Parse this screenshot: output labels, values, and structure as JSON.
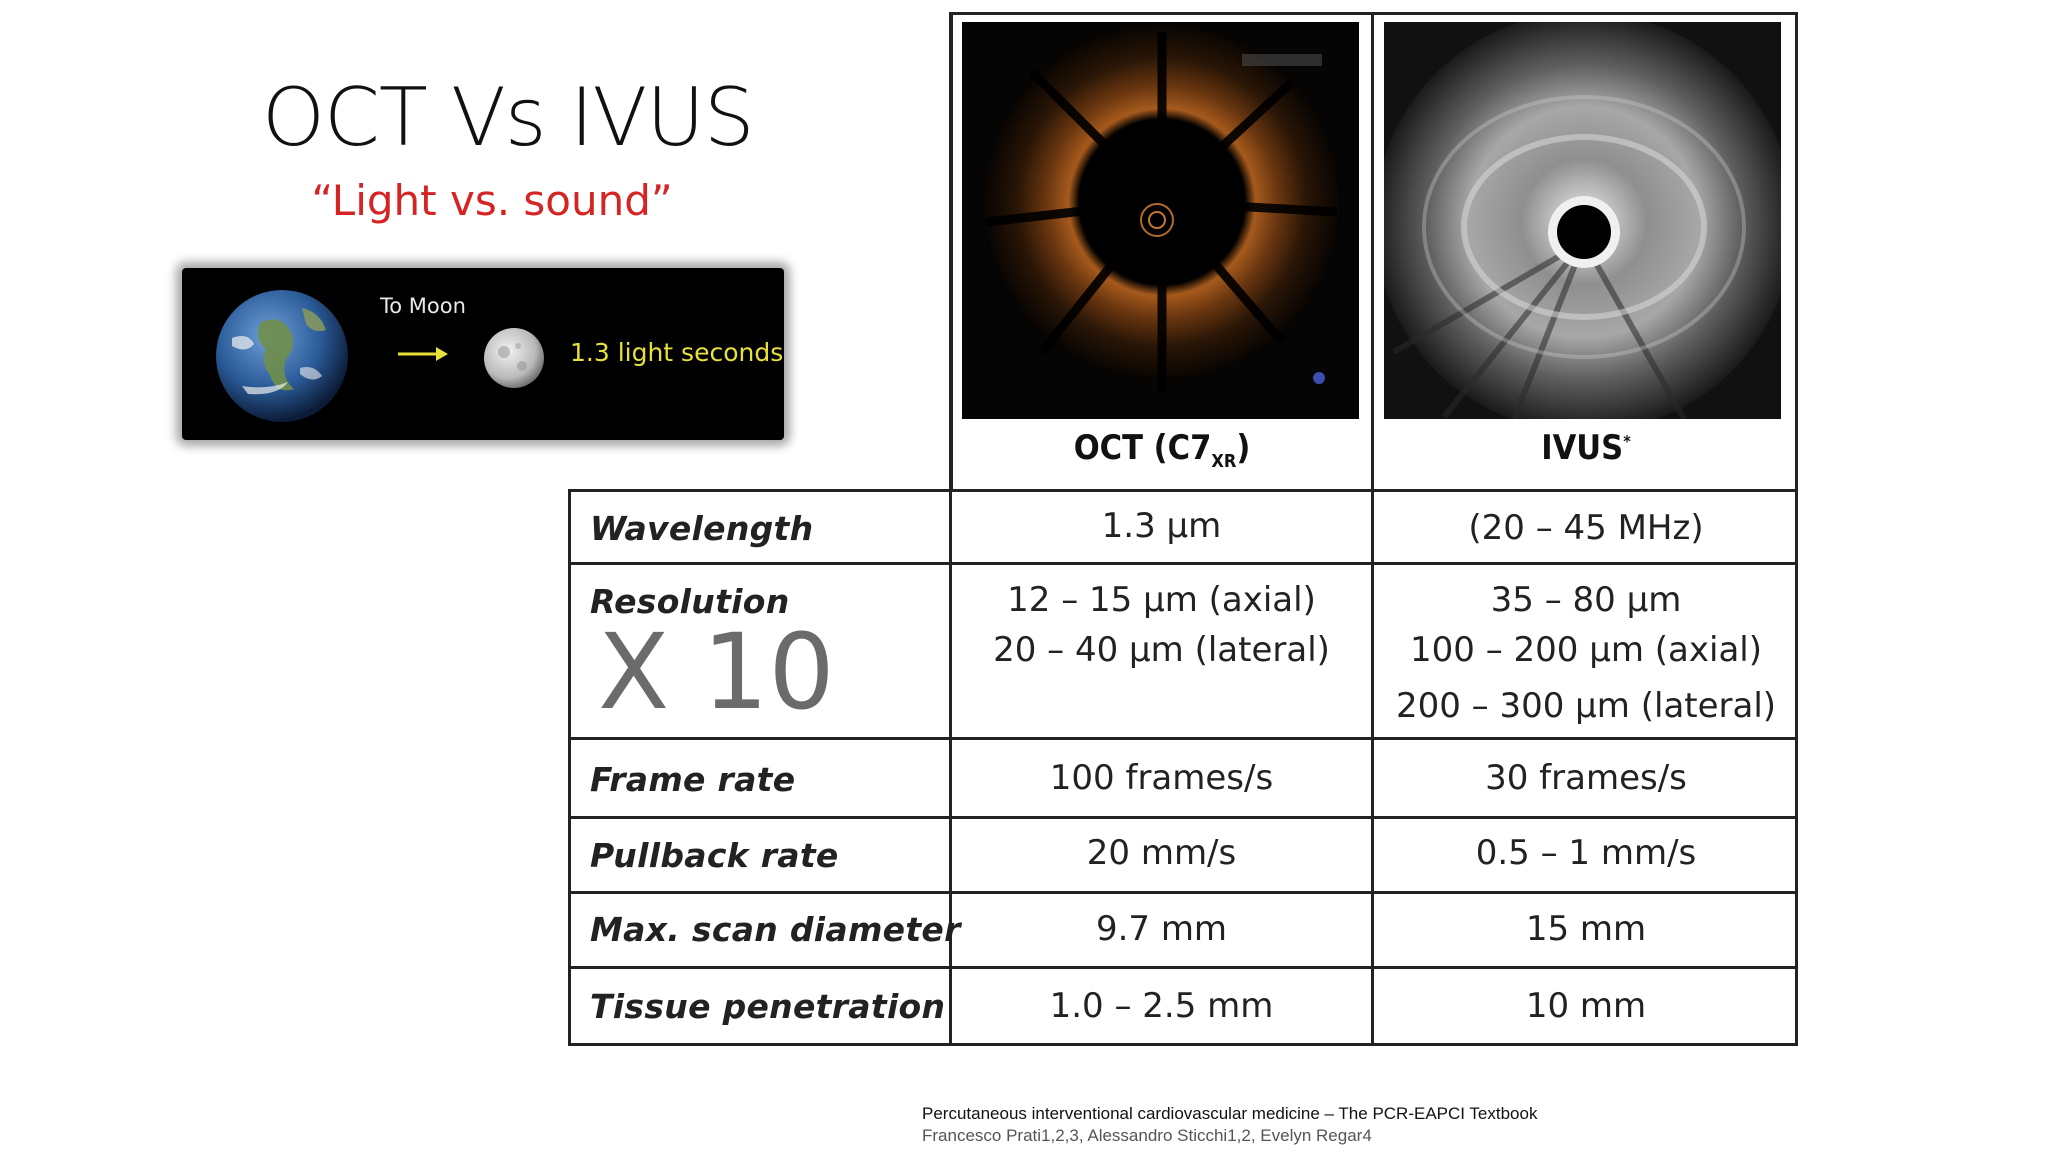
{
  "title": "OCT Vs IVUS",
  "subtitle": "“Light vs. sound”",
  "moon_graphic": {
    "to_label": "To Moon",
    "distance_label": "1.3 light seconds"
  },
  "table": {
    "columns": [
      {
        "label": "OCT (C7",
        "subscript": "XR",
        "suffix": ")"
      },
      {
        "label": "IVUS",
        "superscript": "*"
      }
    ],
    "rows": [
      {
        "label": "Wavelength",
        "oct": [
          "1.3 µm"
        ],
        "ivus": [
          "(20 – 45 MHz)"
        ]
      },
      {
        "label": "Resolution",
        "oct": [
          "12 – 15 µm (axial)",
          "20 – 40 µm (lateral)"
        ],
        "ivus": [
          "35 – 80 µm",
          "100 – 200 µm (axial)",
          "200 – 300 µm (lateral)"
        ]
      },
      {
        "label": "Frame rate",
        "oct": [
          "100 frames/s"
        ],
        "ivus": [
          "30 frames/s"
        ]
      },
      {
        "label": "Pullback rate",
        "oct": [
          "20 mm/s"
        ],
        "ivus": [
          "0.5 – 1 mm/s"
        ]
      },
      {
        "label": "Max. scan diameter",
        "oct": [
          "9.7 mm"
        ],
        "ivus": [
          "15 mm"
        ]
      },
      {
        "label": "Tissue penetration",
        "oct": [
          "1.0 – 2.5 mm"
        ],
        "ivus": [
          "10 mm"
        ]
      }
    ]
  },
  "annotation": "X 10",
  "reference": {
    "line1": "Percutaneous interventional cardiovascular medicine – The PCR-EAPCI Textbook",
    "line2": "Francesco Prati1,2,3, Alessandro Sticchi1,2, Evelyn Regar4"
  }
}
